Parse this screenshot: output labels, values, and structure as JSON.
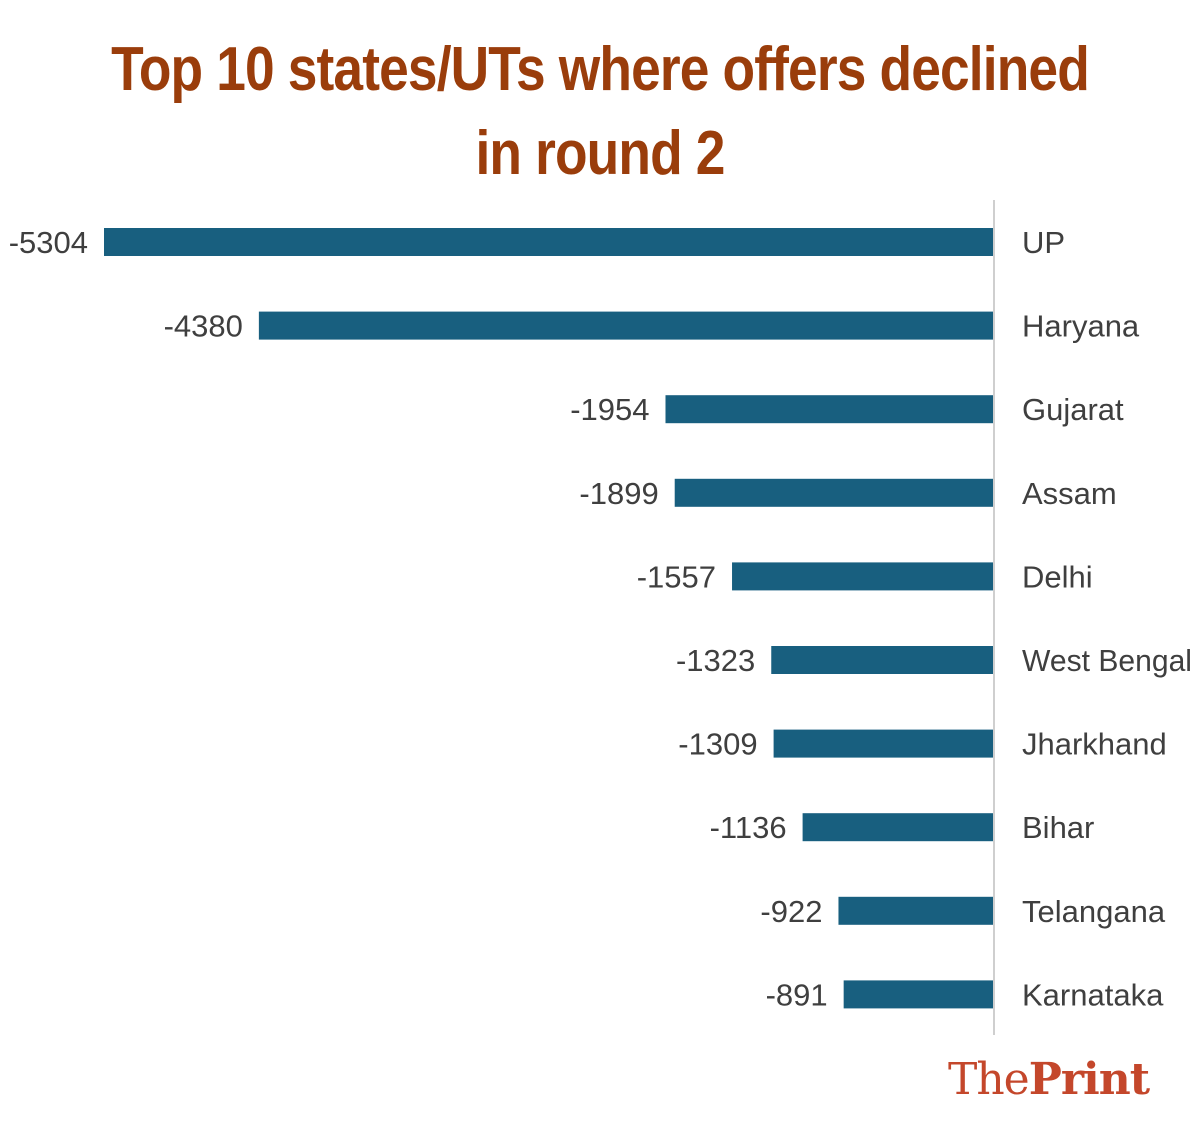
{
  "chart_data": {
    "type": "bar",
    "orientation": "horizontal",
    "title_line1": "Top 10 states/UTs where offers declined",
    "title_line2": "in round 2",
    "categories": [
      "UP",
      "Haryana",
      "Gujarat",
      "Assam",
      "Delhi",
      "West Bengal",
      "Jharkhand",
      "Bihar",
      "Telangana",
      "Karnataka"
    ],
    "values": [
      -5304,
      -4380,
      -1954,
      -1899,
      -1557,
      -1323,
      -1309,
      -1136,
      -922,
      -891
    ],
    "xlim": [
      -5304,
      0
    ],
    "bar_color": "#185f7f",
    "axis_color": "#cfcfcf",
    "data_labels": true,
    "grid": false,
    "legend": false
  },
  "brand": {
    "part1": "The",
    "part2": "Print",
    "color": "#c4472b"
  },
  "colors": {
    "title": "#9a3d0b",
    "label_text": "#3f3f3f"
  }
}
